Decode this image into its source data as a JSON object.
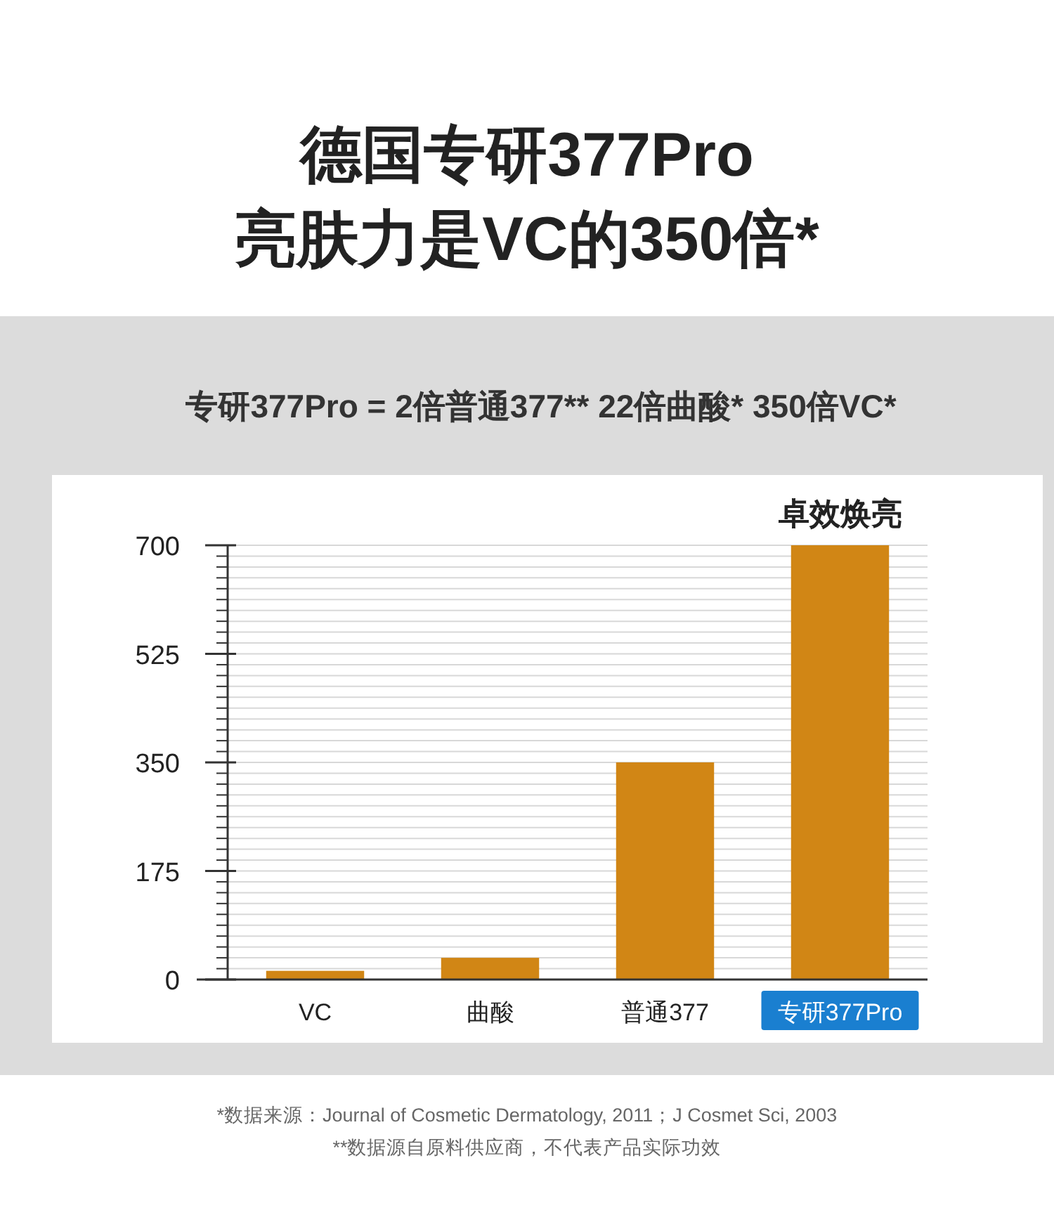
{
  "chart_data": {
    "type": "bar",
    "title": "德国专研377Pro\n亮肤力是VC的350倍*",
    "subtitle": "专研377Pro = 2倍普通377**  22倍曲酸*  350倍VC*",
    "categories": [
      "VC",
      "曲酸",
      "普通377",
      "专研377Pro"
    ],
    "values": [
      14,
      35,
      350,
      700
    ],
    "color": "#d18615",
    "ylim": [
      0,
      700
    ],
    "yticks": [
      0,
      {
        "value": 17.5,
        "label": null
      },
      {
        "value": 35,
        "label": null
      },
      {
        "value": 52.5,
        "label": null
      },
      {
        "value": 70,
        "label": null
      },
      {
        "value": 87.5,
        "label": null
      },
      {
        "value": 105,
        "label": null
      },
      {
        "value": 122.5,
        "label": null
      },
      {
        "value": 140,
        "label": null
      },
      {
        "value": 157.5,
        "label": null
      },
      175,
      {
        "value": 192.5,
        "label": null
      },
      {
        "value": 210,
        "label": null
      },
      {
        "value": 227.5,
        "label": null
      },
      {
        "value": 245,
        "label": null
      },
      {
        "value": 262.5,
        "label": null
      },
      {
        "value": 280,
        "label": null
      },
      {
        "value": 297.5,
        "label": null
      },
      {
        "value": 315,
        "label": null
      },
      {
        "value": 332.5,
        "label": null
      },
      350,
      {
        "value": 367.5,
        "label": null
      },
      {
        "value": 385,
        "label": null
      },
      {
        "value": 402.5,
        "label": null
      },
      {
        "value": 420,
        "label": null
      },
      {
        "value": 437.5,
        "label": null
      },
      {
        "value": 455,
        "label": null
      },
      {
        "value": 472.5,
        "label": null
      },
      {
        "value": 490,
        "label": null
      },
      {
        "value": 507.5,
        "label": null
      },
      525,
      {
        "value": 542.5,
        "label": null
      },
      {
        "value": 560,
        "label": null
      },
      {
        "value": 577.5,
        "label": null
      },
      {
        "value": 595,
        "label": null
      },
      {
        "value": 612.5,
        "label": null
      },
      {
        "value": 630,
        "label": null
      },
      {
        "value": 647.5,
        "label": null
      },
      {
        "value": 665,
        "label": null
      },
      {
        "value": 682.5,
        "label": null
      },
      700
    ],
    "grid": "y",
    "annotations": [
      {
        "text": "卓效焕亮",
        "x": "专研377Pro",
        "y": 700
      },
      "*数据来源：Journal of Cosmetic Dermatology, 2011；J Cosmet Sci, 2003",
      "**数据源自原料供应商，不代表产品实际功效"
    ]
  }
}
